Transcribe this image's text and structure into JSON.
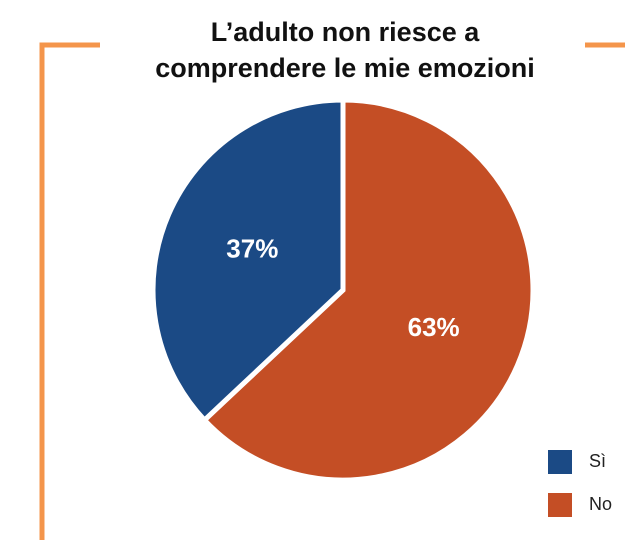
{
  "chart_data": {
    "type": "pie",
    "title": [
      "L’adulto non riesce a",
      "comprendere le mie emozioni"
    ],
    "categories": [
      "Sì",
      "No"
    ],
    "values": [
      37,
      63
    ],
    "value_labels": [
      "37%",
      "63%"
    ],
    "colors": [
      "#1b4a85",
      "#c44e25"
    ],
    "legend": "bottom-right"
  }
}
